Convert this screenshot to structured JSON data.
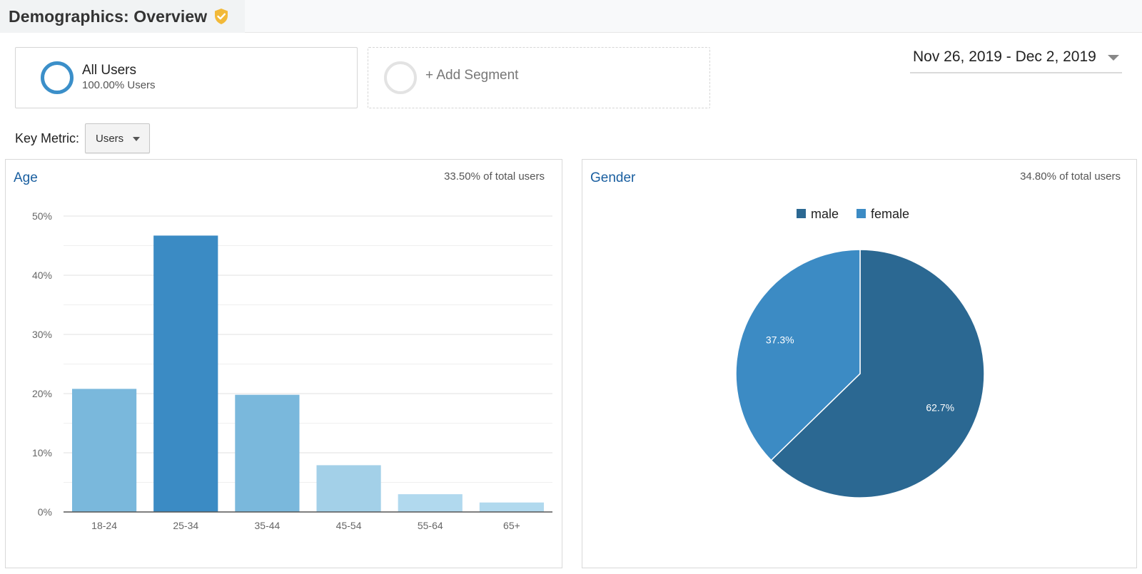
{
  "header": {
    "title": "Demographics: Overview",
    "badge_icon": "shield-check-icon",
    "badge_color": "#f2b938"
  },
  "segments": {
    "all_users": {
      "name": "All Users",
      "sub": "100.00% Users",
      "color": "#3b8fc9"
    },
    "add_label": "+ Add Segment"
  },
  "date_range": {
    "label": "Nov 26, 2019 - Dec 2, 2019",
    "icon": "caret-down-icon"
  },
  "key_metric": {
    "label": "Key Metric:",
    "value": "Users",
    "icon": "caret-down-icon"
  },
  "age_panel": {
    "title": "Age",
    "share": "33.50% of total users"
  },
  "gender_panel": {
    "title": "Gender",
    "share": "34.80% of total users"
  },
  "chart_data": [
    {
      "type": "bar",
      "title": "Age",
      "categories": [
        "18-24",
        "25-34",
        "35-44",
        "45-54",
        "55-64",
        "65+"
      ],
      "values": [
        20.8,
        46.7,
        19.8,
        7.9,
        3.0,
        1.6
      ],
      "colors": [
        "#7ab8dc",
        "#3b8bc4",
        "#7ab8dc",
        "#a3d0e8",
        "#b1d9ee",
        "#b1d9ee"
      ],
      "y_ticks": [
        "0%",
        "10%",
        "20%",
        "30%",
        "40%",
        "50%"
      ],
      "ylim": [
        0,
        50
      ],
      "grid": true
    },
    {
      "type": "pie",
      "title": "Gender",
      "legend_position": "top",
      "slices": [
        {
          "label": "male",
          "value": 62.7,
          "display": "62.7%",
          "color": "#2b6892"
        },
        {
          "label": "female",
          "value": 37.3,
          "display": "37.3%",
          "color": "#3c8bc4"
        }
      ]
    }
  ]
}
